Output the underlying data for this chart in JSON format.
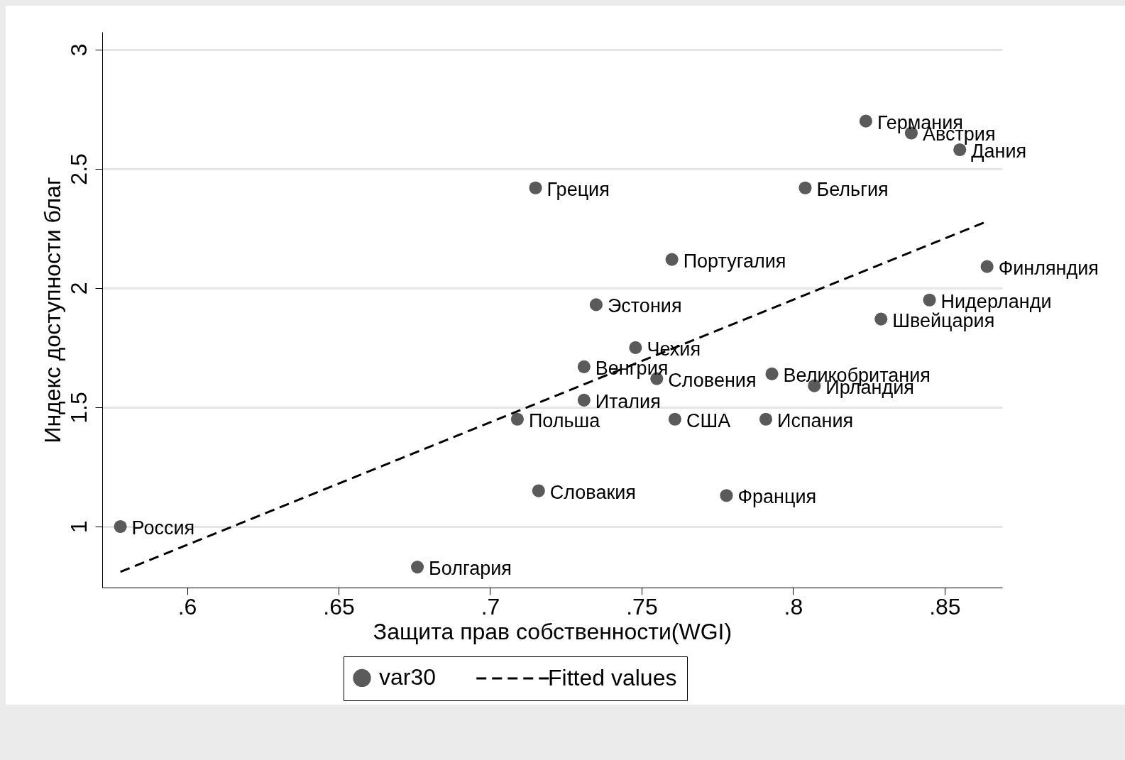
{
  "chart_data": {
    "type": "scatter",
    "xlabel": "Защита прав собственности(WGI)",
    "ylabel": "Индекс доступности благ",
    "x": [
      0.578,
      0.676,
      0.716,
      0.778,
      0.709,
      0.731,
      0.731,
      0.748,
      0.755,
      0.761,
      0.791,
      0.793,
      0.807,
      0.735,
      0.76,
      0.715,
      0.804,
      0.824,
      0.839,
      0.855,
      0.864,
      0.845,
      0.829
    ],
    "series": [
      {
        "name": "var30",
        "color": "#5a5a5a",
        "marker": "circle",
        "values": [
          1.0,
          0.83,
          1.15,
          1.13,
          1.45,
          1.53,
          1.67,
          1.75,
          1.62,
          1.45,
          1.45,
          1.64,
          1.59,
          1.93,
          2.12,
          2.42,
          2.42,
          2.7,
          2.65,
          2.58,
          2.09,
          1.95,
          1.87
        ]
      },
      {
        "name": "Fitted values",
        "type": "line",
        "color": "#000000",
        "line_style": "dashed",
        "marker": "none",
        "x": [
          0.578,
          0.864
        ],
        "values": [
          0.81,
          2.28
        ]
      }
    ],
    "annotations": [
      {
        "text": "Россия",
        "x": 0.578,
        "y": 1.0
      },
      {
        "text": "Болгария",
        "x": 0.676,
        "y": 0.83
      },
      {
        "text": "Словакия",
        "x": 0.716,
        "y": 1.15
      },
      {
        "text": "Франция",
        "x": 0.778,
        "y": 1.13
      },
      {
        "text": "Польша",
        "x": 0.709,
        "y": 1.45
      },
      {
        "text": "Италия",
        "x": 0.731,
        "y": 1.53
      },
      {
        "text": "Венгрия",
        "x": 0.731,
        "y": 1.67
      },
      {
        "text": "Чехия",
        "x": 0.748,
        "y": 1.75
      },
      {
        "text": "Словения",
        "x": 0.755,
        "y": 1.62
      },
      {
        "text": "США",
        "x": 0.761,
        "y": 1.45
      },
      {
        "text": "Испания",
        "x": 0.791,
        "y": 1.45
      },
      {
        "text": "Великобритания",
        "x": 0.793,
        "y": 1.64
      },
      {
        "text": "Ирландия",
        "x": 0.807,
        "y": 1.59
      },
      {
        "text": "Эстония",
        "x": 0.735,
        "y": 1.93
      },
      {
        "text": "Португалия",
        "x": 0.76,
        "y": 2.12
      },
      {
        "text": "Греция",
        "x": 0.715,
        "y": 2.42
      },
      {
        "text": "Бельгия",
        "x": 0.804,
        "y": 2.42
      },
      {
        "text": "Германия",
        "x": 0.824,
        "y": 2.7
      },
      {
        "text": "Австрия",
        "x": 0.839,
        "y": 2.65
      },
      {
        "text": "Дания",
        "x": 0.855,
        "y": 2.58
      },
      {
        "text": "Финляндия",
        "x": 0.864,
        "y": 2.09
      },
      {
        "text": "Нидерланди",
        "x": 0.845,
        "y": 1.95
      },
      {
        "text": "Швейцария",
        "x": 0.829,
        "y": 1.87
      }
    ],
    "xlim": [
      0.572,
      0.869
    ],
    "xticks": [
      {
        "value": 0.6,
        "label": ".6"
      },
      {
        "value": 0.65,
        "label": ".65"
      },
      {
        "value": 0.7,
        "label": ".7"
      },
      {
        "value": 0.75,
        "label": ".75"
      },
      {
        "value": 0.8,
        "label": ".8"
      },
      {
        "value": 0.85,
        "label": ".85"
      }
    ],
    "ylim": [
      0.744,
      3.074
    ],
    "yticks": [
      1,
      1.5,
      2,
      2.5,
      3
    ],
    "grid": "y",
    "legend": "bottom"
  }
}
